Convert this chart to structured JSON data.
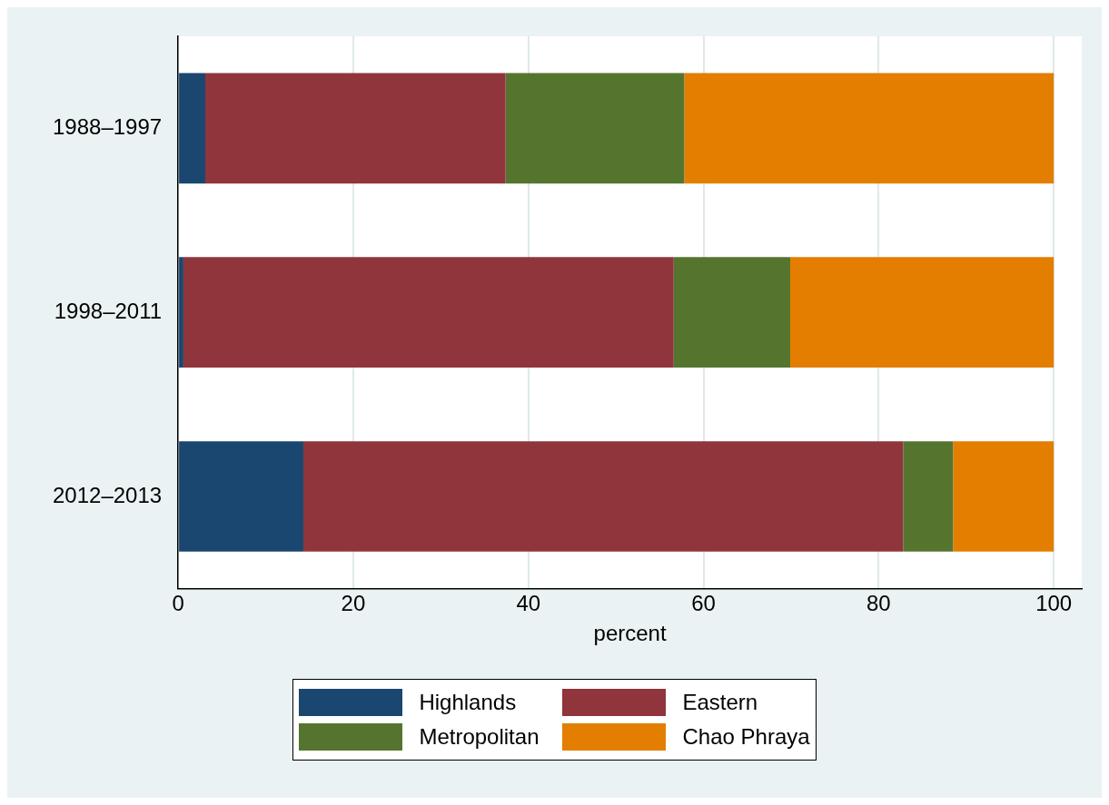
{
  "chart_data": {
    "type": "bar",
    "orientation": "horizontal",
    "stacked": true,
    "categories": [
      "1988–1997",
      "1998–2011",
      "2012–2013"
    ],
    "series": [
      {
        "name": "Highlands",
        "color": "#1a476f",
        "values": [
          3.1,
          0.6,
          14.3
        ]
      },
      {
        "name": "Eastern",
        "color": "#90353b",
        "values": [
          34.3,
          56.0,
          68.5
        ]
      },
      {
        "name": "Metropolitan",
        "color": "#55752f",
        "values": [
          20.4,
          13.3,
          5.7
        ]
      },
      {
        "name": "Chao Phraya",
        "color": "#e37e00",
        "values": [
          42.2,
          30.1,
          11.5
        ]
      }
    ],
    "xlabel": "percent",
    "xlim": [
      0,
      103.2
    ],
    "xticks": [
      0,
      20,
      40,
      60,
      80,
      100
    ],
    "grid": "x",
    "legend": "bottom"
  }
}
